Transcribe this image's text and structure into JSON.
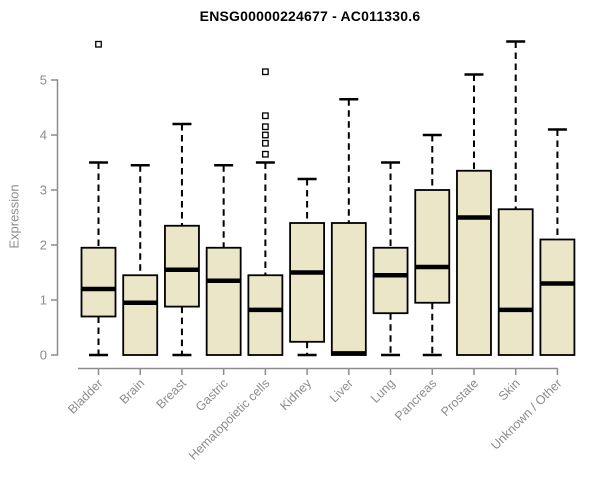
{
  "chart_data": {
    "type": "boxplot",
    "title": "ENSG00000224677 - AC011330.6",
    "xlabel": "",
    "ylabel": "Expression",
    "ylim": [
      0,
      5
    ],
    "yticks": [
      0,
      1,
      2,
      3,
      4,
      5
    ],
    "grid": false,
    "legend": "none",
    "colors": {
      "box_fill": "#ece6c9",
      "box_border": "#000000",
      "median": "#000000",
      "whisker": "#000000",
      "outlier_fill": "#ffffff",
      "axis": "#8c8c8c",
      "label": "#8c8c8c",
      "title": "#000000",
      "background": "#ffffff"
    },
    "categories": [
      "Bladder",
      "Brain",
      "Breast",
      "Gastric",
      "Hematopoietic cells",
      "Kidney",
      "Liver",
      "Lung",
      "Pancreas",
      "Prostate",
      "Skin",
      "Unknown / Other"
    ],
    "boxes": [
      {
        "category": "Bladder",
        "whisker_low": 0,
        "q1": 0.7,
        "median": 1.2,
        "q3": 1.95,
        "whisker_high": 3.5,
        "outliers": [
          5.65
        ]
      },
      {
        "category": "Brain",
        "whisker_low": 0,
        "q1": 0.0,
        "median": 0.95,
        "q3": 1.45,
        "whisker_high": 3.45,
        "outliers": []
      },
      {
        "category": "Breast",
        "whisker_low": 0,
        "q1": 0.88,
        "median": 1.55,
        "q3": 2.35,
        "whisker_high": 4.2,
        "outliers": []
      },
      {
        "category": "Gastric",
        "whisker_low": 0,
        "q1": 0.0,
        "median": 1.35,
        "q3": 1.95,
        "whisker_high": 3.45,
        "outliers": []
      },
      {
        "category": "Hematopoietic cells",
        "whisker_low": 0,
        "q1": 0.0,
        "median": 0.82,
        "q3": 1.45,
        "whisker_high": 3.5,
        "outliers": [
          3.65,
          3.85,
          4.0,
          4.15,
          4.35,
          5.15
        ]
      },
      {
        "category": "Kidney",
        "whisker_low": 0,
        "q1": 0.24,
        "median": 1.5,
        "q3": 2.4,
        "whisker_high": 3.2,
        "outliers": []
      },
      {
        "category": "Liver",
        "whisker_low": 0,
        "q1": 0.0,
        "median": 0.03,
        "q3": 2.4,
        "whisker_high": 4.65,
        "outliers": []
      },
      {
        "category": "Lung",
        "whisker_low": 0,
        "q1": 0.76,
        "median": 1.45,
        "q3": 1.95,
        "whisker_high": 3.5,
        "outliers": []
      },
      {
        "category": "Pancreas",
        "whisker_low": 0,
        "q1": 0.95,
        "median": 1.6,
        "q3": 3.0,
        "whisker_high": 4.0,
        "outliers": []
      },
      {
        "category": "Prostate",
        "whisker_low": 0,
        "q1": 0.0,
        "median": 2.5,
        "q3": 3.35,
        "whisker_high": 5.1,
        "outliers": []
      },
      {
        "category": "Skin",
        "whisker_low": 0,
        "q1": 0.0,
        "median": 0.82,
        "q3": 2.65,
        "whisker_high": 5.7,
        "outliers": []
      },
      {
        "category": "Unknown / Other",
        "whisker_low": 0,
        "q1": 0.0,
        "median": 1.3,
        "q3": 2.1,
        "whisker_high": 4.1,
        "outliers": []
      }
    ]
  }
}
